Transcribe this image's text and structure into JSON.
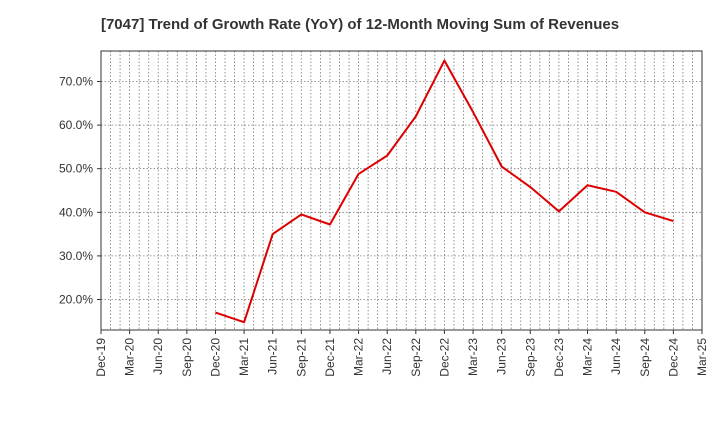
{
  "chart_data": {
    "type": "line",
    "title": "[7047]  Trend of Growth Rate (YoY) of 12-Month Moving Sum of Revenues",
    "xlabel": "",
    "ylabel": "",
    "categories": [
      "Dec-19",
      "Mar-20",
      "Jun-20",
      "Sep-20",
      "Dec-20",
      "Mar-21",
      "Jun-21",
      "Sep-21",
      "Dec-21",
      "Mar-22",
      "Jun-22",
      "Sep-22",
      "Dec-22",
      "Mar-23",
      "Jun-23",
      "Sep-23",
      "Dec-23",
      "Mar-24",
      "Jun-24",
      "Sep-24",
      "Dec-24",
      "Mar-25"
    ],
    "y_ticks": [
      "20.0%",
      "30.0%",
      "40.0%",
      "50.0%",
      "60.0%",
      "70.0%"
    ],
    "ylim": [
      13,
      77
    ],
    "grid": true,
    "series": [
      {
        "color": "#dd0000",
        "values": [
          null,
          null,
          null,
          null,
          17.0,
          14.8,
          35.0,
          39.5,
          37.2,
          48.8,
          53.0,
          62.0,
          74.8,
          63.0,
          50.5,
          45.8,
          40.2,
          46.2,
          44.7,
          40.0,
          38.0,
          null
        ]
      }
    ]
  }
}
